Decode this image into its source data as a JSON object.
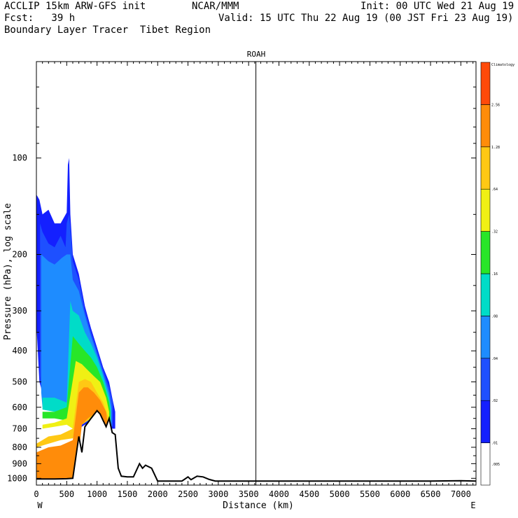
{
  "header": {
    "line1_left": "ACCLIP 15km ARW-GFS init",
    "line1_mid": "NCAR/MMM",
    "line1_right": "Init: 00 UTC Wed 21 Aug 19",
    "line2_left": "Fcst:   39 h",
    "line2_right": "Valid: 15 UTC Thu 22 Aug 19 (00 JST Fri 23 Aug 19)",
    "line3_left": "Boundary Layer Tracer  Tibet Region"
  },
  "chart_data": {
    "type": "area",
    "title": "ROAH",
    "xlabel": "Distance (km)",
    "ylabel": "Pressure (hPa), log scale",
    "x_ticks": [
      0,
      500,
      1000,
      1500,
      2000,
      2500,
      3000,
      3500,
      4000,
      4500,
      5000,
      5500,
      6000,
      6500,
      7000
    ],
    "y_ticks": [
      100,
      200,
      300,
      400,
      500,
      600,
      700,
      800,
      900,
      1000
    ],
    "xlim": [
      0,
      7250
    ],
    "ylim": [
      1050,
      50
    ],
    "yscale": "log",
    "x_end_labels": {
      "left": "W",
      "right": "E"
    },
    "marker_line_x": 3620,
    "colorbar": {
      "levels": [
        ".005",
        ".01",
        ".02",
        ".04",
        ".08",
        ".16",
        ".32",
        ".64",
        "1.28",
        "2.56",
        "Climatology"
      ],
      "colors": [
        "#ffffff",
        "#1420ff",
        "#1e50ff",
        "#1e8cff",
        "#00dcc8",
        "#28e628",
        "#f0f014",
        "#ffc814",
        "#ff8c0a",
        "#ff4a0a"
      ]
    },
    "terrain": {
      "x": [
        0,
        300,
        500,
        600,
        700,
        750,
        800,
        900,
        1000,
        1050,
        1100,
        1150,
        1200,
        1250,
        1300,
        1350,
        1400,
        1500,
        1600,
        1700,
        1750,
        1800,
        1900,
        2000,
        2100,
        2400,
        2500,
        2550,
        2650,
        2750,
        2850,
        2950,
        3500,
        4500,
        5500,
        6500,
        7000,
        7250
      ],
      "p": [
        1005,
        1005,
        1003,
        1000,
        740,
        830,
        690,
        650,
        615,
        630,
        660,
        690,
        650,
        720,
        730,
        930,
        985,
        990,
        990,
        900,
        930,
        910,
        930,
        1020,
        1020,
        1020,
        990,
        1010,
        985,
        990,
        1008,
        1020,
        1020,
        1020,
        1020,
        1020,
        1018,
        1020
      ]
    },
    "tracer_shading": [
      {
        "level": ".01",
        "x": [
          0,
          50,
          100,
          200,
          300,
          400,
          500,
          520,
          540,
          560,
          600,
          700,
          800,
          900,
          1000,
          1100,
          1200,
          1250,
          1300,
          1300,
          1250,
          1200,
          1100,
          1000,
          900,
          800,
          700,
          600,
          540,
          520,
          500,
          450,
          400,
          300,
          200,
          100,
          50,
          0
        ],
        "p": [
          130,
          135,
          150,
          145,
          160,
          160,
          148,
          105,
          100,
          150,
          200,
          230,
          290,
          340,
          390,
          450,
          500,
          560,
          620,
          700,
          700,
          690,
          660,
          640,
          670,
          680,
          700,
          690,
          570,
          560,
          600,
          600,
          580,
          580,
          560,
          540,
          500,
          330
        ]
      },
      {
        "level": ".02",
        "x": [
          60,
          100,
          200,
          300,
          400,
          480,
          500,
          540,
          560,
          600,
          700,
          800,
          900,
          1000,
          1100,
          1200,
          1260,
          1260,
          1200,
          1100,
          1000,
          900,
          800,
          700,
          600,
          540,
          500,
          400,
          300,
          200,
          100,
          60
        ],
        "p": [
          160,
          170,
          185,
          190,
          175,
          190,
          160,
          150,
          165,
          210,
          240,
          300,
          350,
          400,
          460,
          520,
          580,
          690,
          680,
          650,
          630,
          660,
          670,
          690,
          680,
          600,
          610,
          600,
          600,
          590,
          580,
          480
        ]
      },
      {
        "level": ".04",
        "x": [
          80,
          200,
          300,
          420,
          500,
          560,
          600,
          700,
          800,
          900,
          1000,
          1100,
          1200,
          1240,
          1240,
          1200,
          1100,
          1000,
          900,
          800,
          700,
          600,
          500,
          400,
          300,
          200,
          100,
          80
        ],
        "p": [
          200,
          210,
          215,
          205,
          200,
          200,
          240,
          260,
          310,
          360,
          410,
          470,
          540,
          600,
          690,
          680,
          650,
          630,
          650,
          670,
          690,
          680,
          620,
          610,
          610,
          600,
          600,
          540
        ]
      },
      {
        "level": ".08",
        "x": [
          100,
          300,
          500,
          560,
          600,
          700,
          800,
          900,
          1000,
          1100,
          1200,
          1230,
          1230,
          1100,
          1000,
          900,
          800,
          700,
          600,
          500,
          300,
          100
        ],
        "p": [
          560,
          560,
          580,
          280,
          300,
          310,
          350,
          380,
          420,
          480,
          560,
          610,
          690,
          650,
          630,
          650,
          670,
          690,
          690,
          640,
          620,
          610
        ]
      },
      {
        "level": ".16",
        "x": [
          100,
          300,
          500,
          600,
          700,
          800,
          900,
          1000,
          1100,
          1200,
          1220,
          1220,
          1100,
          1000,
          900,
          800,
          700,
          600,
          500,
          300,
          100
        ],
        "p": [
          620,
          620,
          600,
          360,
          380,
          400,
          420,
          450,
          500,
          580,
          620,
          690,
          650,
          630,
          650,
          670,
          690,
          700,
          660,
          650,
          650
        ]
      },
      {
        "level": ".32",
        "x": [
          100,
          300,
          500,
          650,
          750,
          850,
          950,
          1050,
          1150,
          1200,
          1200,
          1100,
          1000,
          900,
          800,
          700,
          600,
          500,
          300,
          100
        ],
        "p": [
          680,
          670,
          650,
          430,
          440,
          460,
          480,
          500,
          560,
          620,
          690,
          650,
          630,
          650,
          670,
          690,
          700,
          680,
          690,
          700
        ]
      },
      {
        "level": ".64",
        "x": [
          0,
          200,
          400,
          600,
          700,
          800,
          900,
          1000,
          1100,
          1180,
          1180,
          1100,
          1000,
          900,
          800,
          700,
          600,
          400,
          200,
          0
        ],
        "p": [
          780,
          740,
          730,
          700,
          500,
          490,
          500,
          540,
          580,
          640,
          690,
          650,
          630,
          650,
          670,
          690,
          750,
          760,
          780,
          800
        ]
      },
      {
        "level": "1.28",
        "x": [
          0,
          200,
          400,
          600,
          700,
          780,
          850,
          950,
          1050,
          1150,
          1180,
          1150,
          1050,
          950,
          850,
          750,
          700,
          650,
          600,
          500,
          300,
          100,
          0
        ],
        "p": [
          830,
          800,
          790,
          760,
          540,
          520,
          520,
          540,
          570,
          620,
          690,
          680,
          640,
          630,
          650,
          680,
          830,
          1000,
          1000,
          1003,
          1005,
          1005,
          1005
        ]
      }
    ]
  }
}
